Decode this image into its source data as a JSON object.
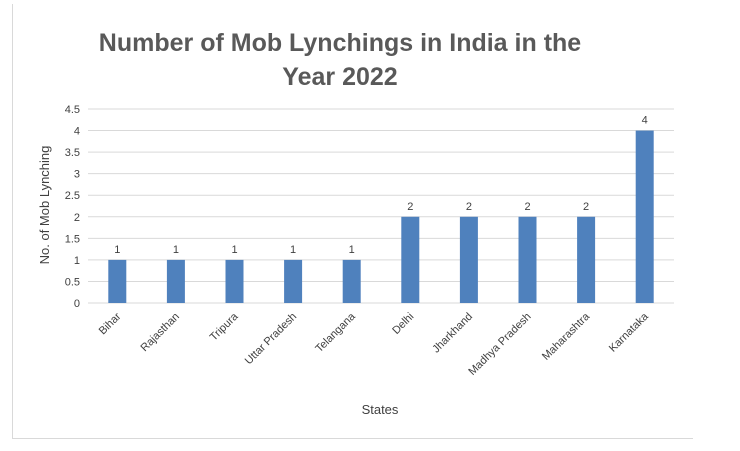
{
  "chart_data": {
    "type": "bar",
    "title": "Number of Mob Lynchings in India in the Year 2022",
    "xlabel": "States",
    "ylabel": "No. of Mob Lynching",
    "categories": [
      "Bihar",
      "Rajasthan",
      "Tripura",
      "Uttar Pradesh",
      "Telangana",
      "Delhi",
      "Jharkhand",
      "Madhya Pradesh",
      "Maharashtra",
      "Karnataka"
    ],
    "values": [
      1,
      1,
      1,
      1,
      1,
      2,
      2,
      2,
      2,
      4
    ],
    "ylim": [
      0,
      4.5
    ],
    "yticks": [
      "0",
      "0.5",
      "1",
      "1.5",
      "2",
      "2.5",
      "3",
      "3.5",
      "4",
      "4.5"
    ],
    "grid": true,
    "legend": "none",
    "bar_color": "#4f81bd",
    "grid_color": "#d9d9d9",
    "text_color": "#404040",
    "title_color": "#595959"
  }
}
